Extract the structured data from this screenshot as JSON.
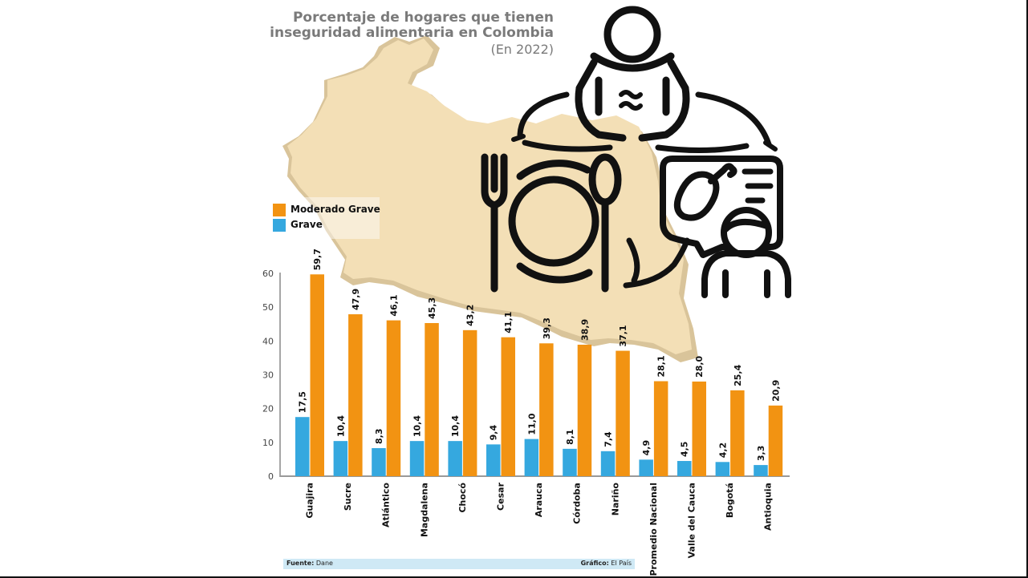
{
  "title_line1": "Porcentaje de hogares que tienen",
  "title_line2": "inseguridad alimentaria en Colombia",
  "subtitle": "(En 2022)",
  "legend": {
    "moderado_label": "Moderado Grave",
    "grave_label": "Grave"
  },
  "footer": {
    "source_label": "Fuente:",
    "source_value": "Dane",
    "credit_label": "Gráfico:",
    "credit_value": "El País"
  },
  "colors": {
    "moderado": "#f29312",
    "grave": "#35a8df",
    "map": "#f3dfb6",
    "map_side": "#d9c49a",
    "icons": "#111111"
  },
  "icons": [
    "person-hungry-icon",
    "plate-fork-spoon-icon",
    "chicken-leg-speech-bubble-icon",
    "person-icon"
  ],
  "chart_data": {
    "type": "bar",
    "categories": [
      "Guajira",
      "Sucre",
      "Atlántico",
      "Magdalena",
      "Chocó",
      "Cesar",
      "Arauca",
      "Córdoba",
      "Nariño",
      "Promedio Nacional",
      "Valle del Cauca",
      "Bogotá",
      "Antioquia"
    ],
    "series": [
      {
        "name": "Grave",
        "values": [
          17.5,
          10.4,
          8.3,
          10.4,
          10.4,
          9.4,
          11.0,
          8.1,
          7.4,
          4.9,
          4.5,
          4.2,
          3.3
        ],
        "labels": [
          "17,5",
          "10,4",
          "8,3",
          "10,4",
          "10,4",
          "9,4",
          "11,0",
          "8,1",
          "7,4",
          "4,9",
          "4,5",
          "4,2",
          "3,3"
        ]
      },
      {
        "name": "Moderado Grave",
        "values": [
          59.7,
          47.9,
          46.1,
          45.3,
          43.2,
          41.1,
          39.3,
          38.9,
          37.1,
          28.1,
          28.0,
          25.4,
          20.9
        ],
        "labels": [
          "59,7",
          "47,9",
          "46,1",
          "45,3",
          "43,2",
          "41,1",
          "39,3",
          "38,9",
          "37,1",
          "28,1",
          "28,0",
          "25,4",
          "20,9"
        ]
      }
    ],
    "ylim": [
      0,
      60
    ],
    "yticks": [
      0,
      10,
      20,
      30,
      40,
      50,
      60
    ],
    "grid": false,
    "legend_position": "top-left"
  }
}
